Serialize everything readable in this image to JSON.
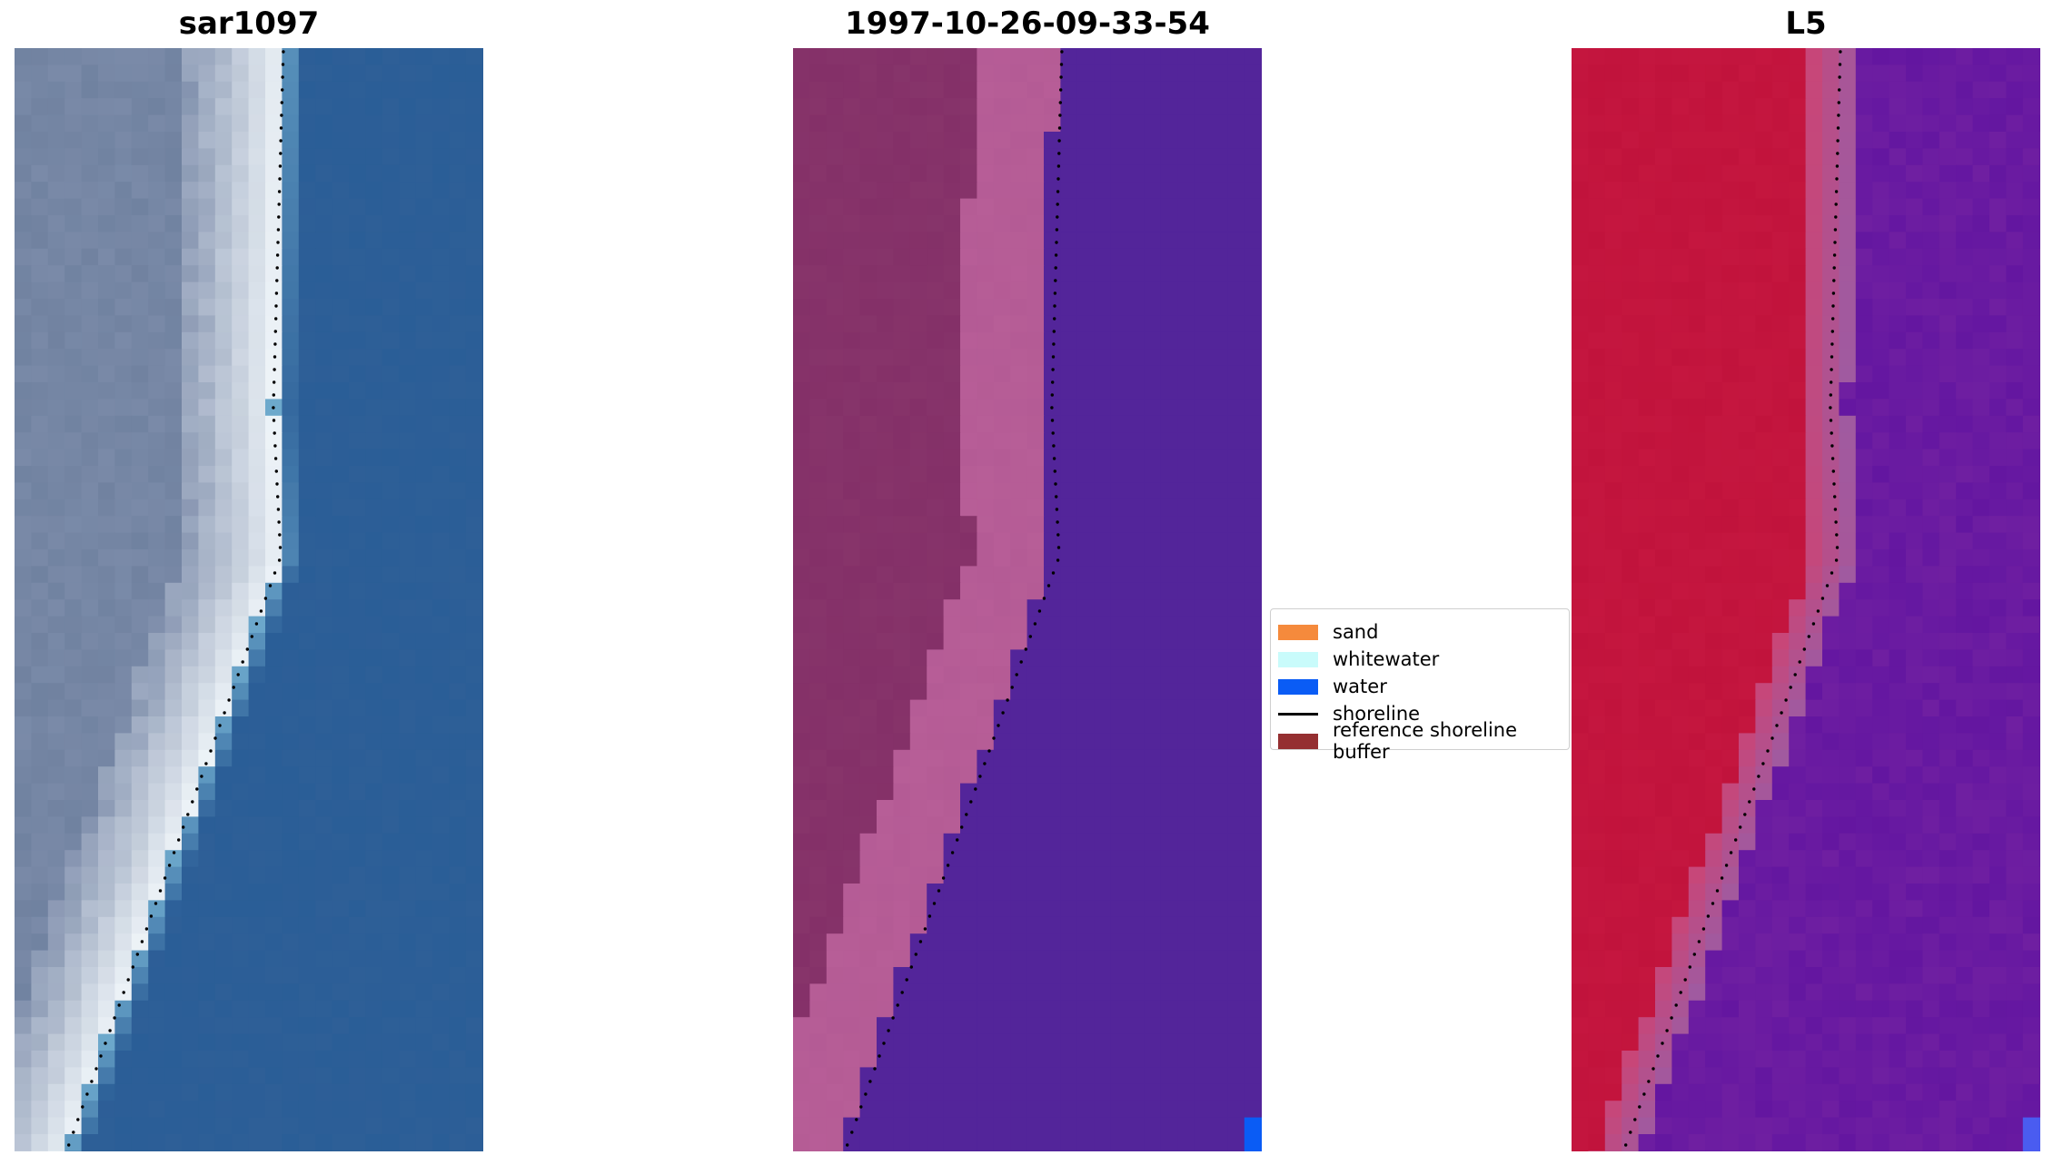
{
  "panels": [
    {
      "title": "sar1097",
      "style": "rgb"
    },
    {
      "title": "1997-10-26-09-33-54",
      "style": "classified"
    },
    {
      "title": "L5",
      "style": "mndwi"
    }
  ],
  "legend": {
    "items": [
      {
        "label": "sand",
        "color": "#f58a3c",
        "kind": "patch"
      },
      {
        "label": "whitewater",
        "color": "#c9fbfb",
        "kind": "patch"
      },
      {
        "label": "water",
        "color": "#0a5cf5",
        "kind": "patch"
      },
      {
        "label": "shoreline",
        "color": "#000000",
        "kind": "line"
      },
      {
        "label": "reference shoreline buffer",
        "color": "#952f31",
        "kind": "patch"
      }
    ]
  },
  "colors": {
    "ocean": "#2e5f97",
    "land_gray": "#7a8aa8",
    "whitewater": "#eef4f8",
    "classified_water": "#53259a",
    "classified_land": "#843068",
    "classified_beach": "#b45b95",
    "mndwi_land": "#c1133c",
    "mndwi_water": "#6f1fa1"
  }
}
